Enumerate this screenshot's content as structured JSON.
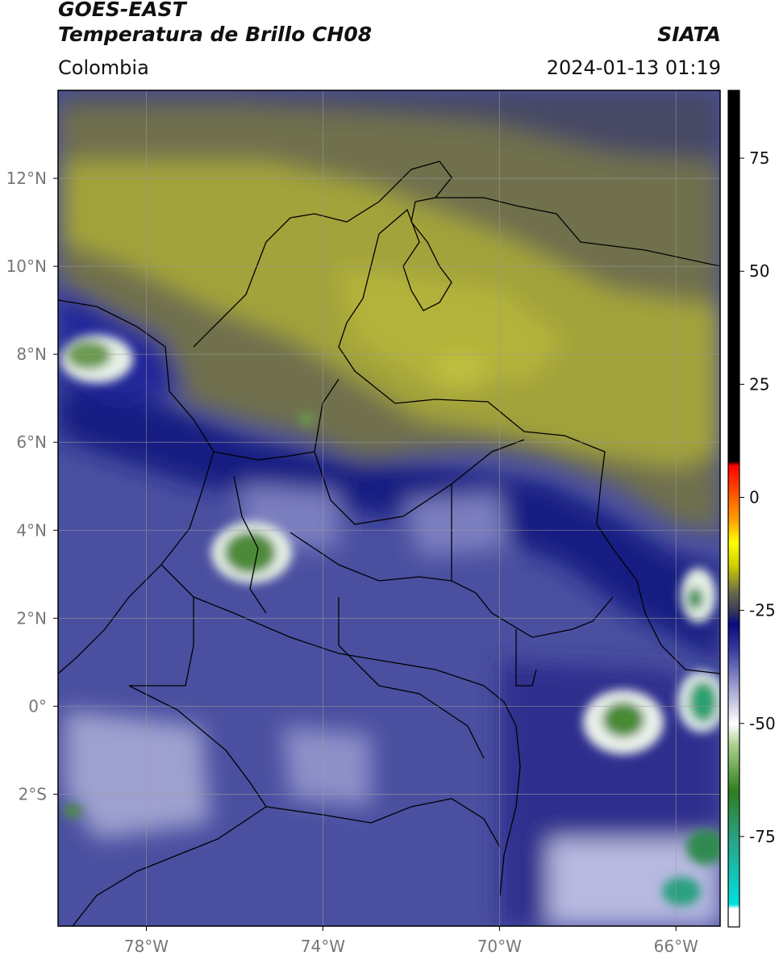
{
  "header": {
    "satellite": "GOES-EAST",
    "product": "Temperatura de Brillo CH08",
    "agency": "SIATA",
    "region": "Colombia",
    "timestamp": "2024-01-13 01:19"
  },
  "map": {
    "lon_range": [
      -80,
      -65
    ],
    "lat_range": [
      -5,
      14
    ],
    "lon_ticks": [
      {
        "value": -78,
        "label": "78°W"
      },
      {
        "value": -74,
        "label": "74°W"
      },
      {
        "value": -70,
        "label": "70°W"
      },
      {
        "value": -66,
        "label": "66°W"
      }
    ],
    "lat_ticks": [
      {
        "value": 12,
        "label": "12°N"
      },
      {
        "value": 10,
        "label": "10°N"
      },
      {
        "value": 8,
        "label": "8°N"
      },
      {
        "value": 6,
        "label": "6°N"
      },
      {
        "value": 4,
        "label": "4°N"
      },
      {
        "value": 2,
        "label": "2°N"
      },
      {
        "value": 0,
        "label": "0°"
      },
      {
        "value": -2,
        "label": "2°S"
      }
    ],
    "gridlines": true
  },
  "colorbar": {
    "range": [
      -95,
      90
    ],
    "ticks": [
      {
        "value": 75,
        "label": "75"
      },
      {
        "value": 50,
        "label": "50"
      },
      {
        "value": 25,
        "label": "25"
      },
      {
        "value": 0,
        "label": "0"
      },
      {
        "value": -25,
        "label": "-25"
      },
      {
        "value": -50,
        "label": "-50"
      },
      {
        "value": -75,
        "label": "-75"
      }
    ],
    "stops": [
      {
        "value": -95,
        "color": "#ffffff"
      },
      {
        "value": -91,
        "color": "#ffffff"
      },
      {
        "value": -90,
        "color": "#00e0e0"
      },
      {
        "value": -75,
        "color": "#2aa080"
      },
      {
        "value": -65,
        "color": "#2f7d20"
      },
      {
        "value": -55,
        "color": "#a8d08a"
      },
      {
        "value": -50,
        "color": "#ffffff"
      },
      {
        "value": -42,
        "color": "#9ea0d0"
      },
      {
        "value": -34,
        "color": "#3a3ea0"
      },
      {
        "value": -28,
        "color": "#0a0a80"
      },
      {
        "value": -25,
        "color": "#3a3a5a"
      },
      {
        "value": -21,
        "color": "#6a6a4a"
      },
      {
        "value": -15,
        "color": "#d0d000"
      },
      {
        "value": -10,
        "color": "#ffff00"
      },
      {
        "value": -5,
        "color": "#ffa000"
      },
      {
        "value": 0,
        "color": "#ff6000"
      },
      {
        "value": 7,
        "color": "#ff0000"
      },
      {
        "value": 8,
        "color": "#000000"
      },
      {
        "value": 90,
        "color": "#000000"
      }
    ]
  }
}
